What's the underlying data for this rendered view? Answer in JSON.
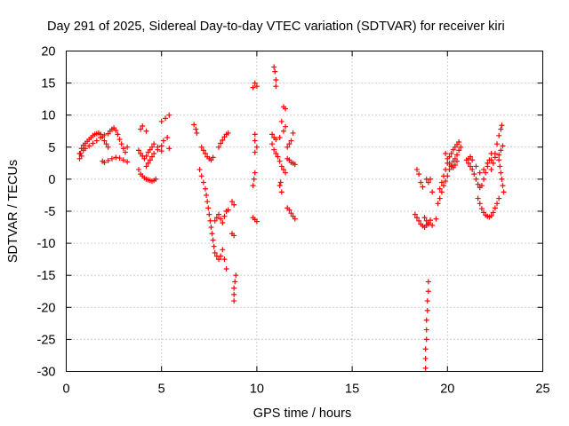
{
  "chart_data": {
    "type": "scatter",
    "title": "Day 291 of 2025, Sidereal Day-to-day VTEC variation (SDTVAR) for receiver kiri",
    "xlabel": "GPS time / hours",
    "ylabel": "SDTVAR / TECUs",
    "xlim": [
      0,
      25
    ],
    "ylim": [
      -30,
      20
    ],
    "xticks": [
      0,
      5,
      10,
      15,
      20,
      25
    ],
    "yticks": [
      -30,
      -25,
      -20,
      -15,
      -10,
      -5,
      0,
      5,
      10,
      15,
      20
    ],
    "grid": true,
    "marker": "plus",
    "color": "#ff0000",
    "series": [
      {
        "points": [
          [
            0.7,
            3.2
          ],
          [
            0.75,
            4.0
          ],
          [
            0.8,
            4.8
          ],
          [
            0.9,
            5.3
          ],
          [
            1.0,
            5.6
          ],
          [
            1.1,
            5.9
          ],
          [
            1.2,
            6.2
          ],
          [
            1.3,
            6.5
          ],
          [
            1.4,
            6.8
          ],
          [
            1.5,
            7.0
          ],
          [
            1.6,
            7.1
          ],
          [
            1.7,
            7.2
          ],
          [
            1.8,
            7.0
          ],
          [
            1.9,
            6.6
          ],
          [
            2.0,
            6.0
          ],
          [
            2.1,
            5.5
          ],
          [
            2.2,
            5.0
          ],
          [
            0.7,
            4.0
          ],
          [
            0.8,
            3.6
          ],
          [
            0.9,
            4.5
          ],
          [
            1.0,
            4.8
          ],
          [
            1.2,
            5.2
          ],
          [
            1.4,
            5.6
          ],
          [
            1.6,
            6.0
          ],
          [
            1.8,
            6.5
          ],
          [
            2.0,
            6.9
          ],
          [
            2.2,
            7.1
          ],
          [
            1.9,
            2.8
          ],
          [
            2.0,
            2.6
          ],
          [
            2.2,
            2.9
          ],
          [
            2.4,
            3.2
          ],
          [
            2.6,
            3.4
          ],
          [
            2.8,
            3.3
          ],
          [
            3.0,
            3.0
          ],
          [
            3.2,
            2.7
          ],
          [
            2.3,
            7.5
          ],
          [
            2.4,
            7.8
          ],
          [
            2.5,
            8.0
          ],
          [
            2.6,
            7.6
          ],
          [
            2.7,
            7.0
          ],
          [
            2.8,
            6.2
          ],
          [
            2.9,
            5.5
          ],
          [
            3.0,
            4.8
          ],
          [
            3.1,
            4.2
          ],
          [
            3.2,
            5.0
          ],
          [
            3.9,
            7.8
          ],
          [
            4.0,
            8.3
          ],
          [
            4.2,
            7.5
          ],
          [
            3.8,
            4.5
          ],
          [
            3.9,
            4.0
          ],
          [
            4.0,
            3.6
          ],
          [
            4.1,
            3.2
          ],
          [
            4.2,
            3.6
          ],
          [
            4.3,
            4.2
          ],
          [
            4.4,
            4.6
          ],
          [
            4.5,
            5.0
          ],
          [
            4.6,
            5.5
          ],
          [
            4.8,
            5.0
          ],
          [
            5.0,
            4.4
          ],
          [
            3.8,
            1.5
          ],
          [
            3.9,
            0.8
          ],
          [
            4.0,
            0.5
          ],
          [
            4.1,
            0.2
          ],
          [
            4.2,
            0.0
          ],
          [
            4.3,
            -0.1
          ],
          [
            4.4,
            -0.2
          ],
          [
            4.5,
            -0.3
          ],
          [
            4.6,
            -0.2
          ],
          [
            4.7,
            0.0
          ],
          [
            4.2,
            2.0
          ],
          [
            4.3,
            2.5
          ],
          [
            4.4,
            3.0
          ],
          [
            4.5,
            3.5
          ],
          [
            4.6,
            4.0
          ],
          [
            4.8,
            4.6
          ],
          [
            5.0,
            5.2
          ],
          [
            5.0,
            9.0
          ],
          [
            5.2,
            9.5
          ],
          [
            5.4,
            10.0
          ],
          [
            5.1,
            6.0
          ],
          [
            5.3,
            6.5
          ],
          [
            5.4,
            4.8
          ],
          [
            6.7,
            8.5
          ],
          [
            6.8,
            7.8
          ],
          [
            6.85,
            7.2
          ],
          [
            7.1,
            5.0
          ],
          [
            7.2,
            4.5
          ],
          [
            7.3,
            4.0
          ],
          [
            7.4,
            3.5
          ],
          [
            7.5,
            3.2
          ],
          [
            7.6,
            3.0
          ],
          [
            7.7,
            3.4
          ],
          [
            7.0,
            1.5
          ],
          [
            7.1,
            0.5
          ],
          [
            7.2,
            -0.5
          ],
          [
            7.3,
            -1.5
          ],
          [
            7.35,
            -2.5
          ],
          [
            7.4,
            -3.5
          ],
          [
            7.45,
            -4.5
          ],
          [
            7.5,
            -5.5
          ],
          [
            7.55,
            -6.5
          ],
          [
            7.6,
            -7.5
          ],
          [
            7.65,
            -8.5
          ],
          [
            7.7,
            -9.5
          ],
          [
            7.75,
            -10.5
          ],
          [
            7.8,
            -11.5
          ],
          [
            7.9,
            -12.0
          ],
          [
            8.0,
            -12.5
          ],
          [
            8.1,
            -12.0
          ],
          [
            8.2,
            -11.0
          ],
          [
            8.3,
            -12.5
          ],
          [
            8.4,
            -14.0
          ],
          [
            8.0,
            5.0
          ],
          [
            8.1,
            5.6
          ],
          [
            8.2,
            6.1
          ],
          [
            8.3,
            6.6
          ],
          [
            8.4,
            7.0
          ],
          [
            8.5,
            7.2
          ],
          [
            7.8,
            -6.5
          ],
          [
            7.9,
            -6.0
          ],
          [
            8.0,
            -5.5
          ],
          [
            8.1,
            -6.2
          ],
          [
            8.2,
            -6.8
          ],
          [
            8.3,
            -5.8
          ],
          [
            8.4,
            -5.0
          ],
          [
            8.5,
            -4.8
          ],
          [
            8.7,
            -3.5
          ],
          [
            8.8,
            -4.0
          ],
          [
            8.7,
            -8.5
          ],
          [
            8.8,
            -8.8
          ],
          [
            8.9,
            -15.0
          ],
          [
            8.85,
            -16.0
          ],
          [
            8.8,
            -17.0
          ],
          [
            8.8,
            -18.0
          ],
          [
            8.8,
            -19.0
          ],
          [
            9.9,
            15.0
          ],
          [
            10.0,
            14.5
          ],
          [
            9.8,
            14.3
          ],
          [
            9.9,
            7.0
          ],
          [
            9.9,
            6.0
          ],
          [
            10.0,
            5.0
          ],
          [
            9.9,
            4.2
          ],
          [
            9.9,
            1.0
          ],
          [
            9.85,
            0.0
          ],
          [
            9.8,
            -1.0
          ],
          [
            9.8,
            -6.0
          ],
          [
            9.9,
            -6.3
          ],
          [
            10.0,
            -6.6
          ],
          [
            10.9,
            17.5
          ],
          [
            10.95,
            16.8
          ],
          [
            11.0,
            15.5
          ],
          [
            11.0,
            14.5
          ],
          [
            10.8,
            7.0
          ],
          [
            10.9,
            6.5
          ],
          [
            11.0,
            6.2
          ],
          [
            11.2,
            6.5
          ],
          [
            11.4,
            7.5
          ],
          [
            11.5,
            8.2
          ],
          [
            11.3,
            9.0
          ],
          [
            10.8,
            5.5
          ],
          [
            10.9,
            4.6
          ],
          [
            11.0,
            4.0
          ],
          [
            11.1,
            3.5
          ],
          [
            11.2,
            2.8
          ],
          [
            11.3,
            2.0
          ],
          [
            11.4,
            1.5
          ],
          [
            11.5,
            1.0
          ],
          [
            11.2,
            -1.0
          ],
          [
            11.3,
            -2.0
          ],
          [
            11.25,
            -0.5
          ],
          [
            11.4,
            11.3
          ],
          [
            11.5,
            11.0
          ],
          [
            11.6,
            5.0
          ],
          [
            11.7,
            5.5
          ],
          [
            11.8,
            6.0
          ],
          [
            11.9,
            7.2
          ],
          [
            11.6,
            3.2
          ],
          [
            11.7,
            3.0
          ],
          [
            11.8,
            2.6
          ],
          [
            11.9,
            2.5
          ],
          [
            12.0,
            2.3
          ],
          [
            11.6,
            -4.5
          ],
          [
            11.7,
            -4.8
          ],
          [
            11.8,
            -5.3
          ],
          [
            11.9,
            -5.8
          ],
          [
            12.0,
            -6.2
          ],
          [
            18.4,
            1.5
          ],
          [
            18.5,
            0.8
          ],
          [
            18.6,
            -0.5
          ],
          [
            18.7,
            -1.2
          ],
          [
            18.3,
            -5.5
          ],
          [
            18.4,
            -6.0
          ],
          [
            18.5,
            -6.5
          ],
          [
            18.6,
            -7.0
          ],
          [
            18.7,
            -7.3
          ],
          [
            18.8,
            -7.5
          ],
          [
            18.9,
            -7.2
          ],
          [
            19.0,
            -6.8
          ],
          [
            19.1,
            -6.4
          ],
          [
            19.2,
            -7.2
          ],
          [
            18.8,
            -6.0
          ],
          [
            18.9,
            -6.5
          ],
          [
            19.0,
            -7.0
          ],
          [
            19.0,
            -16.0
          ],
          [
            19.0,
            -17.5
          ],
          [
            18.95,
            -19.0
          ],
          [
            18.95,
            -20.5
          ],
          [
            18.9,
            -22.0
          ],
          [
            18.9,
            -23.5
          ],
          [
            18.9,
            -25.0
          ],
          [
            18.85,
            -26.5
          ],
          [
            18.85,
            -28.0
          ],
          [
            18.85,
            -29.5
          ],
          [
            18.9,
            0.0
          ],
          [
            19.0,
            -0.5
          ],
          [
            19.1,
            0.0
          ],
          [
            19.5,
            -3.8
          ],
          [
            19.6,
            -3.0
          ],
          [
            19.7,
            -2.0
          ],
          [
            19.8,
            -1.0
          ],
          [
            19.9,
            -0.3
          ],
          [
            20.0,
            0.5
          ],
          [
            20.1,
            1.5
          ],
          [
            20.2,
            2.2
          ],
          [
            20.3,
            2.8
          ],
          [
            20.4,
            3.2
          ],
          [
            20.5,
            3.8
          ],
          [
            20.6,
            4.5
          ],
          [
            20.7,
            5.0
          ],
          [
            19.6,
            -1.5
          ],
          [
            19.7,
            -0.5
          ],
          [
            19.8,
            0.5
          ],
          [
            19.9,
            1.5
          ],
          [
            20.0,
            2.5
          ],
          [
            20.1,
            3.5
          ],
          [
            20.2,
            4.0
          ],
          [
            20.3,
            4.6
          ],
          [
            20.4,
            5.0
          ],
          [
            20.5,
            5.4
          ],
          [
            20.6,
            5.8
          ],
          [
            19.9,
            4.0
          ],
          [
            20.0,
            3.2
          ],
          [
            20.1,
            2.5
          ],
          [
            20.2,
            2.0
          ],
          [
            20.3,
            1.8
          ],
          [
            20.4,
            2.2
          ],
          [
            20.5,
            2.8
          ],
          [
            19.4,
            -6.2
          ],
          [
            19.2,
            -2.0
          ],
          [
            21.0,
            3.0
          ],
          [
            21.1,
            2.5
          ],
          [
            21.2,
            2.0
          ],
          [
            21.3,
            1.5
          ],
          [
            21.4,
            0.8
          ],
          [
            21.5,
            0.0
          ],
          [
            21.6,
            -0.8
          ],
          [
            21.7,
            -1.3
          ],
          [
            21.8,
            -1.0
          ],
          [
            21.9,
            0.0
          ],
          [
            22.0,
            1.0
          ],
          [
            22.1,
            2.0
          ],
          [
            22.2,
            3.0
          ],
          [
            22.3,
            4.0
          ],
          [
            21.6,
            -3.0
          ],
          [
            21.7,
            -3.8
          ],
          [
            21.8,
            -4.6
          ],
          [
            21.9,
            -5.2
          ],
          [
            22.0,
            -5.6
          ],
          [
            22.1,
            -5.8
          ],
          [
            22.2,
            -5.9
          ],
          [
            22.3,
            -5.7
          ],
          [
            22.4,
            -5.2
          ],
          [
            22.5,
            -4.5
          ],
          [
            22.6,
            -3.8
          ],
          [
            22.7,
            -3.0
          ],
          [
            21.1,
            3.2
          ],
          [
            21.2,
            3.5
          ],
          [
            21.3,
            3.0
          ],
          [
            21.5,
            2.0
          ],
          [
            21.7,
            1.0
          ],
          [
            21.9,
            1.5
          ],
          [
            22.1,
            2.5
          ],
          [
            22.3,
            3.0
          ],
          [
            22.5,
            3.4
          ],
          [
            22.7,
            3.8
          ],
          [
            22.3,
            1.5
          ],
          [
            22.4,
            2.5
          ],
          [
            22.5,
            4.0
          ],
          [
            22.6,
            5.5
          ],
          [
            22.7,
            6.8
          ],
          [
            22.8,
            7.8
          ],
          [
            22.85,
            8.4
          ],
          [
            22.7,
            3.0
          ],
          [
            22.75,
            2.0
          ],
          [
            22.8,
            1.0
          ],
          [
            22.85,
            0.0
          ],
          [
            22.9,
            -1.0
          ],
          [
            22.95,
            -2.0
          ],
          [
            22.8,
            4.5
          ],
          [
            22.9,
            5.2
          ]
        ]
      }
    ]
  }
}
